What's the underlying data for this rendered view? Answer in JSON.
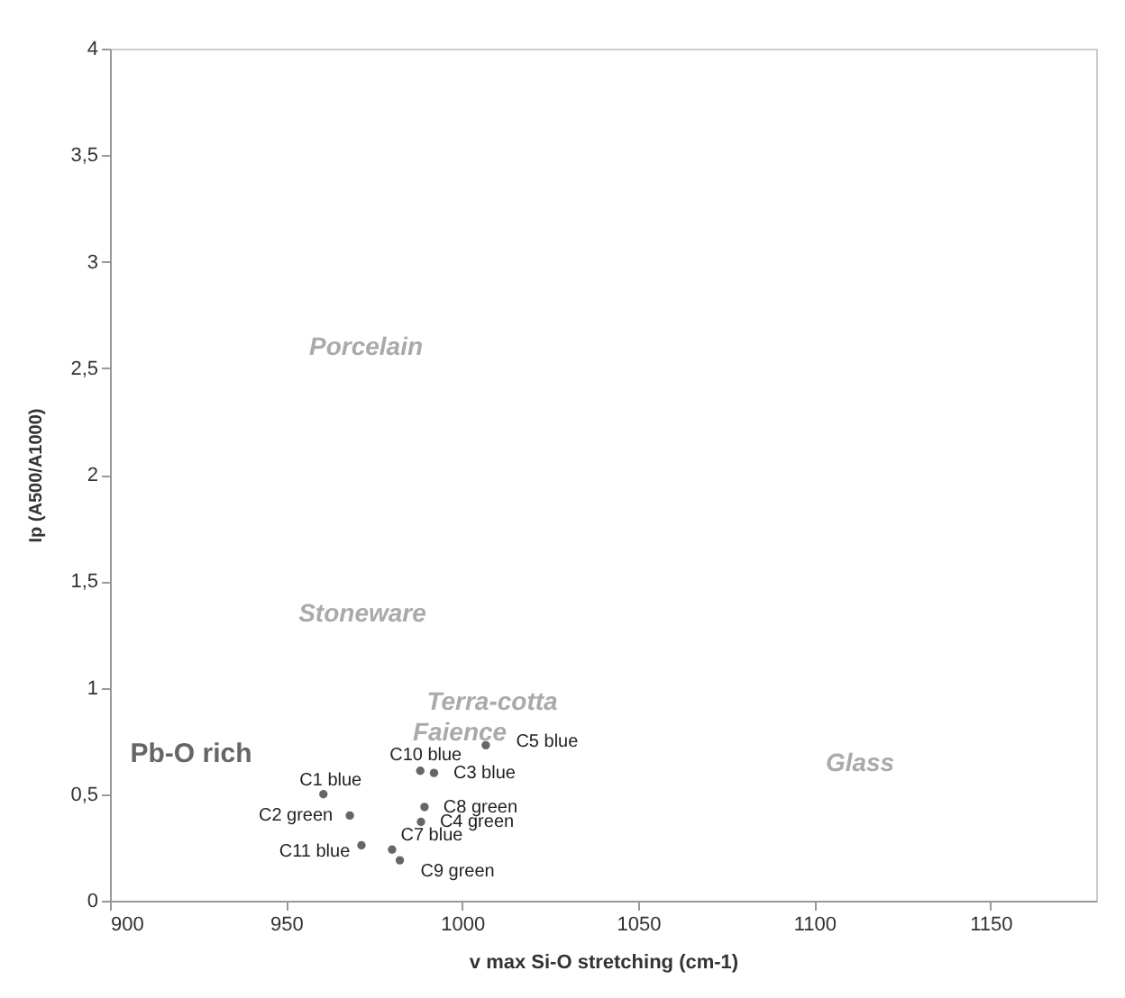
{
  "chart_data": {
    "type": "scatter",
    "xlabel": "v max Si-O stretching (cm-1)",
    "ylabel": "Ip (A500/A1000)",
    "xlim": [
      900,
      1180
    ],
    "xticks": [
      900,
      950,
      1000,
      1050,
      1100,
      1150
    ],
    "ylim": [
      0,
      4
    ],
    "yticks": [
      0,
      {
        "value": 0.5,
        "label": "0,5"
      },
      1,
      {
        "value": 1.5,
        "label": "1,5"
      },
      2,
      {
        "value": 2.5,
        "label": "2,5"
      },
      3,
      {
        "value": 3.5,
        "label": "3,5"
      },
      4
    ],
    "grid": false,
    "marker": "circle",
    "series": [
      {
        "name": "C1 blue",
        "color": "#666666",
        "x": [
          960.6
        ],
        "values": [
          0.5
        ]
      },
      {
        "name": "C2 green",
        "color": "#666666",
        "x": [
          968.1
        ],
        "values": [
          0.4
        ]
      },
      {
        "name": "C11 blue",
        "color": "#666666",
        "x": [
          971.4
        ],
        "values": [
          0.26
        ]
      },
      {
        "name": "C7 blue",
        "color": "#666666",
        "x": [
          980.1
        ],
        "values": [
          0.24
        ]
      },
      {
        "name": "C9 green",
        "color": "#666666",
        "x": [
          982.3
        ],
        "values": [
          0.19
        ]
      },
      {
        "name": "C10 blue",
        "color": "#666666",
        "x": [
          988.1
        ],
        "values": [
          0.61
        ]
      },
      {
        "name": "C3 blue",
        "color": "#666666",
        "x": [
          992
        ],
        "values": [
          0.6
        ]
      },
      {
        "name": "C8 green",
        "color": "#666666",
        "x": [
          989.3
        ],
        "values": [
          0.44
        ]
      },
      {
        "name": "C4 green",
        "color": "#666666",
        "x": [
          988.3
        ],
        "values": [
          0.37
        ]
      },
      {
        "name": "C5 blue",
        "color": "#666666",
        "x": [
          1006.7
        ],
        "values": [
          0.73
        ]
      }
    ],
    "annotations": [
      "Porcelain",
      "Stoneware",
      "Terra-cotta",
      "Faience",
      "Glass",
      "Pb-O rich"
    ]
  }
}
